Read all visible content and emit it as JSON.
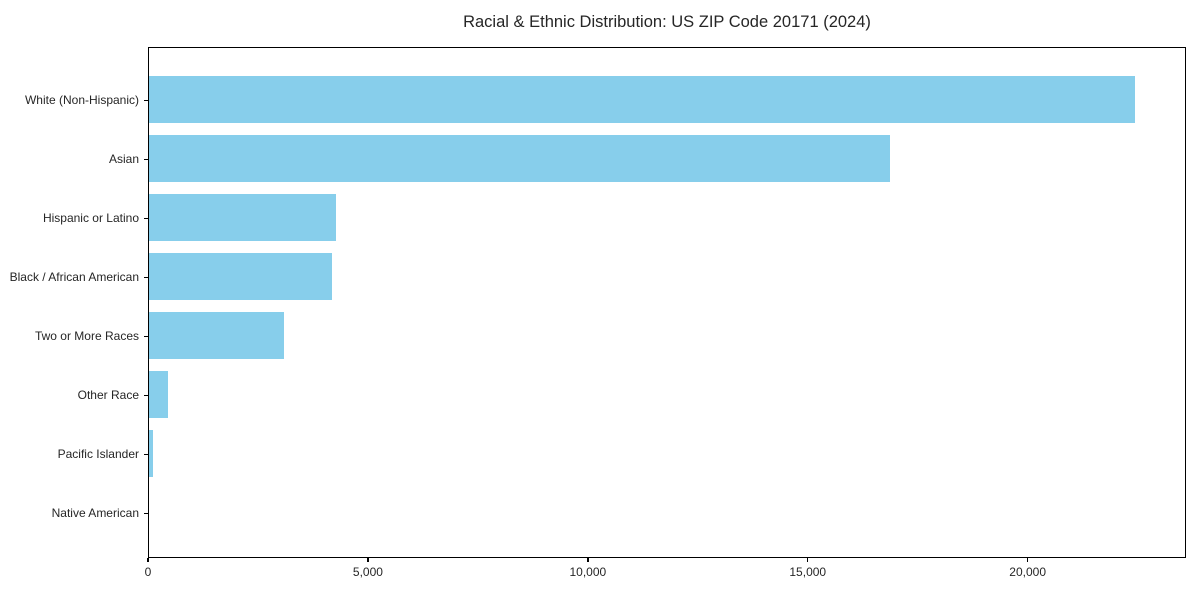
{
  "chart_data": {
    "type": "bar",
    "orientation": "horizontal",
    "title": "Racial & Ethnic Distribution: US ZIP Code 20171 (2024)",
    "categories": [
      "White (Non-Hispanic)",
      "Asian",
      "Hispanic or Latino",
      "Black / African American",
      "Two or More Races",
      "Other Race",
      "Pacific Islander",
      "Native American"
    ],
    "values": [
      22470,
      16870,
      4270,
      4180,
      3070,
      430,
      85,
      0
    ],
    "xlabel": "",
    "ylabel": "",
    "xlim": [
      0,
      23600
    ],
    "x_ticks": [
      0,
      5000,
      10000,
      15000,
      20000
    ],
    "x_tick_labels": [
      "0",
      "5,000",
      "10,000",
      "15,000",
      "20,000"
    ],
    "bar_color": "#87CEEB",
    "plot_border_color": "#000000",
    "background_color": "#ffffff",
    "grid": false,
    "legend_position": "none"
  }
}
